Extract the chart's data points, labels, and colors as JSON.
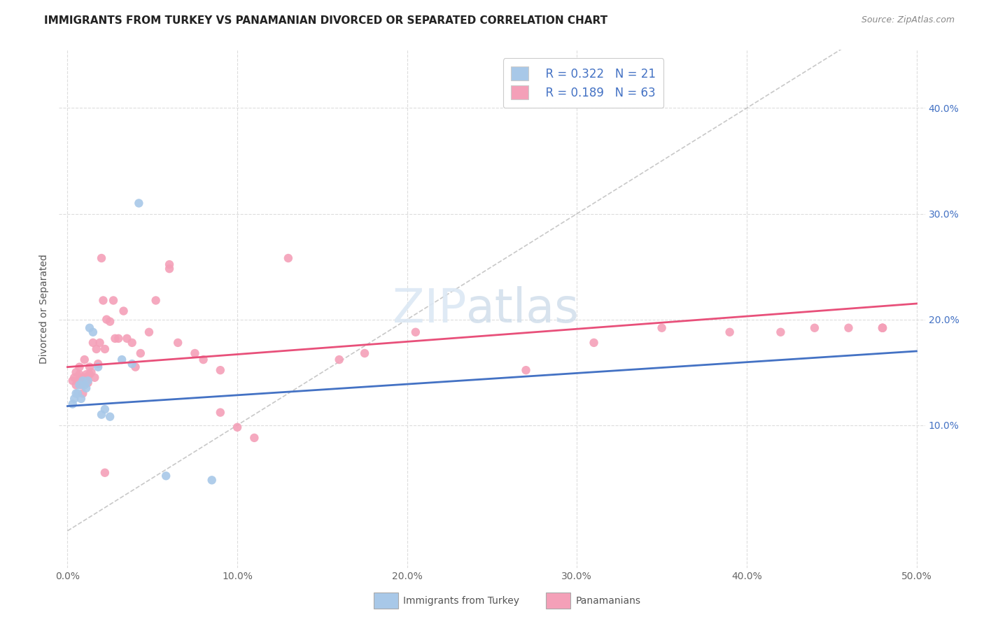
{
  "title": "IMMIGRANTS FROM TURKEY VS PANAMANIAN DIVORCED OR SEPARATED CORRELATION CHART",
  "source": "Source: ZipAtlas.com",
  "ylabel": "Divorced or Separated",
  "xlim": [
    -0.005,
    0.505
  ],
  "ylim": [
    -0.035,
    0.455
  ],
  "xtick_vals": [
    0.0,
    0.1,
    0.2,
    0.3,
    0.4,
    0.5
  ],
  "xtick_labels": [
    "0.0%",
    "10.0%",
    "20.0%",
    "30.0%",
    "40.0%",
    "50.0%"
  ],
  "ytick_vals": [
    0.1,
    0.2,
    0.3,
    0.4
  ],
  "ytick_labels": [
    "10.0%",
    "20.0%",
    "30.0%",
    "40.0%"
  ],
  "legend_r1": "R = 0.322",
  "legend_n1": "N = 21",
  "legend_r2": "R = 0.189",
  "legend_n2": "N = 63",
  "color_blue": "#a8c8e8",
  "color_pink": "#f4a0b8",
  "line_color_blue": "#4472c4",
  "line_color_pink": "#e8507a",
  "ref_line_color": "#bbbbbb",
  "legend_text_color": "#4472c4",
  "title_fontsize": 11,
  "source_fontsize": 9,
  "axis_label_fontsize": 10,
  "tick_fontsize": 10,
  "legend_fontsize": 12,
  "background_color": "#ffffff",
  "grid_color": "#dddddd",
  "turkey_x": [
    0.003,
    0.004,
    0.005,
    0.006,
    0.007,
    0.008,
    0.009,
    0.01,
    0.011,
    0.012,
    0.013,
    0.015,
    0.018,
    0.02,
    0.022,
    0.025,
    0.032,
    0.038,
    0.042,
    0.058,
    0.085
  ],
  "turkey_y": [
    0.12,
    0.125,
    0.13,
    0.13,
    0.138,
    0.125,
    0.142,
    0.138,
    0.135,
    0.142,
    0.192,
    0.188,
    0.155,
    0.11,
    0.115,
    0.108,
    0.162,
    0.158,
    0.31,
    0.052,
    0.048
  ],
  "panama_x": [
    0.003,
    0.004,
    0.005,
    0.005,
    0.006,
    0.007,
    0.007,
    0.008,
    0.008,
    0.009,
    0.009,
    0.01,
    0.01,
    0.011,
    0.011,
    0.012,
    0.013,
    0.013,
    0.014,
    0.015,
    0.016,
    0.017,
    0.018,
    0.019,
    0.02,
    0.021,
    0.022,
    0.023,
    0.025,
    0.027,
    0.028,
    0.03,
    0.033,
    0.035,
    0.038,
    0.04,
    0.043,
    0.048,
    0.052,
    0.06,
    0.065,
    0.075,
    0.08,
    0.09,
    0.1,
    0.11,
    0.13,
    0.16,
    0.175,
    0.205,
    0.27,
    0.31,
    0.35,
    0.39,
    0.42,
    0.44,
    0.46,
    0.48,
    0.48,
    0.48,
    0.06,
    0.09,
    0.022
  ],
  "panama_y": [
    0.142,
    0.145,
    0.138,
    0.15,
    0.142,
    0.148,
    0.155,
    0.138,
    0.145,
    0.13,
    0.142,
    0.162,
    0.145,
    0.145,
    0.148,
    0.14,
    0.155,
    0.148,
    0.15,
    0.178,
    0.145,
    0.172,
    0.158,
    0.178,
    0.258,
    0.218,
    0.172,
    0.2,
    0.198,
    0.218,
    0.182,
    0.182,
    0.208,
    0.182,
    0.178,
    0.155,
    0.168,
    0.188,
    0.218,
    0.252,
    0.178,
    0.168,
    0.162,
    0.152,
    0.098,
    0.088,
    0.258,
    0.162,
    0.168,
    0.188,
    0.152,
    0.178,
    0.192,
    0.188,
    0.188,
    0.192,
    0.192,
    0.192,
    0.192,
    0.192,
    0.248,
    0.112,
    0.055
  ],
  "blue_trend": [
    0.118,
    0.17
  ],
  "pink_trend": [
    0.155,
    0.215
  ],
  "ref_line": [
    0.0,
    0.5
  ],
  "watermark_text": "ZIPatlas",
  "bottom_legend_labels": [
    "Immigrants from Turkey",
    "Panamanians"
  ]
}
